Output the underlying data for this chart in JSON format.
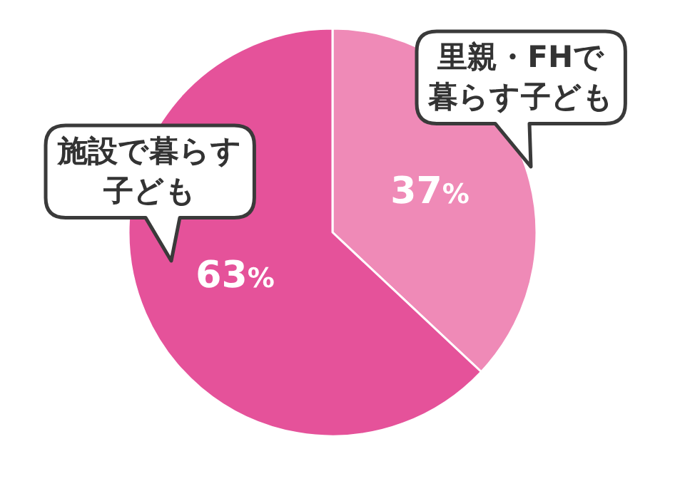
{
  "chart_data": {
    "type": "pie",
    "categories": [
      "里親・FHで暮らす子ども",
      "施設で暮らす子ども"
    ],
    "values": [
      37,
      63
    ],
    "colors": [
      "#ef8ab7",
      "#e5529a"
    ],
    "value_labels": [
      "37%",
      "63%"
    ]
  }
}
